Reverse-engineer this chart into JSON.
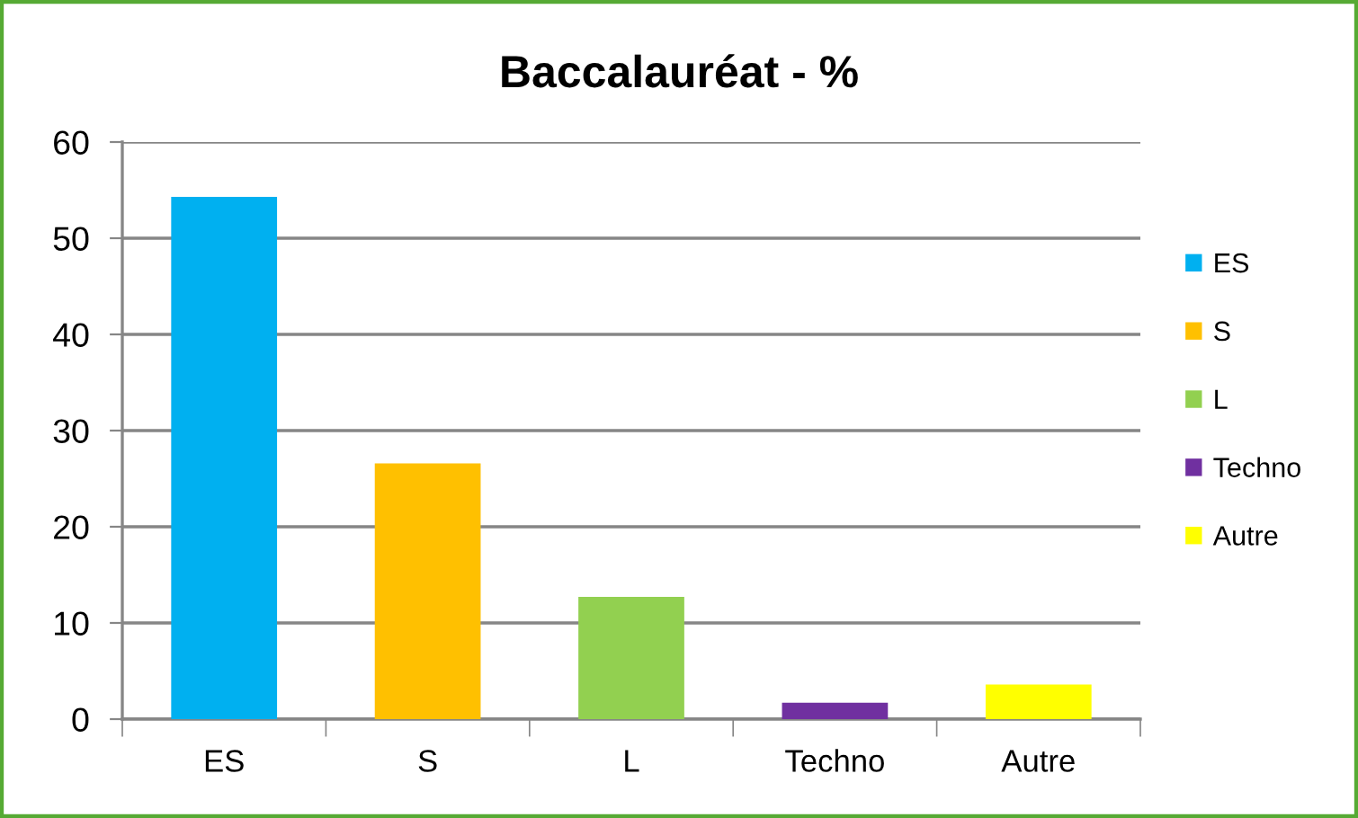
{
  "chart_data": {
    "type": "bar",
    "title": "Baccalauréat - %",
    "categories": [
      "ES",
      "S",
      "L",
      "Techno",
      "Autre"
    ],
    "series": [
      {
        "name": "ES",
        "color": "#00b0f0",
        "values": [
          54.3,
          null,
          null,
          null,
          null
        ]
      },
      {
        "name": "S",
        "color": "#ffc000",
        "values": [
          null,
          26.6,
          null,
          null,
          null
        ]
      },
      {
        "name": "L",
        "color": "#92d050",
        "values": [
          null,
          null,
          12.7,
          null,
          null
        ]
      },
      {
        "name": "Techno",
        "color": "#7030a0",
        "values": [
          null,
          null,
          null,
          1.7,
          null
        ]
      },
      {
        "name": "Autre",
        "color": "#ffff00",
        "values": [
          null,
          null,
          null,
          null,
          3.6
        ]
      }
    ],
    "ylim": [
      0,
      60
    ],
    "yticks": [
      0,
      10,
      20,
      30,
      40,
      50,
      60
    ],
    "grid": "y",
    "legend": "right"
  }
}
